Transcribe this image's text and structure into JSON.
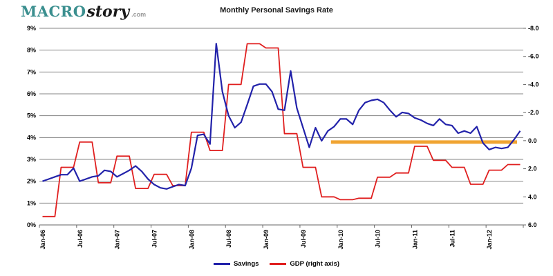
{
  "logo": {
    "brand_primary": "MACRO",
    "brand_secondary": "story",
    "brand_suffix": ".com"
  },
  "title": "Monthly Personal Savings Rate",
  "legend": [
    {
      "label": "Savings",
      "color": "#2222AA"
    },
    {
      "label": "GDP (right axis)",
      "color": "#E01F1F"
    }
  ],
  "colors": {
    "savings_line": "#2222AA",
    "gdp_line": "#E01F1F",
    "reference_bar": "#F0A432",
    "gridline": "#858585",
    "axis": "#666666",
    "label_text": "#000000",
    "logo_teal": "#3B8F8F",
    "logo_black": "#1a1a1a",
    "logo_gray": "#999999"
  },
  "chart_data": {
    "type": "line",
    "title": "Monthly Personal Savings Rate",
    "x_start": "Jan-06",
    "x_end": "Jun-12",
    "n_months": 78,
    "x_tick_labels": [
      "Jan-06",
      "Jul-06",
      "Jan-07",
      "Jul-07",
      "Jan-08",
      "Jul-08",
      "Jan-09",
      "Jul-09",
      "Jan-10",
      "Jul-10",
      "Jan-11",
      "Jul-11",
      "Jan-12"
    ],
    "x_tick_every_n_months": 6,
    "grid": true,
    "legend_position": "bottom",
    "left_axis": {
      "min": 0,
      "max": 9,
      "tick_labels": [
        "0%",
        "1%",
        "2%",
        "3%",
        "4%",
        "5%",
        "6%",
        "7%",
        "8%",
        "9%"
      ]
    },
    "right_axis": {
      "top": -8.0,
      "bottom": 6.0,
      "inverted": true,
      "tick_labels": [
        "-8.0",
        "-6.0",
        "-4.0",
        "-2.0",
        "0.0",
        "2.0",
        "4.0",
        "6.0"
      ]
    },
    "series": [
      {
        "name": "Savings",
        "axis": "left",
        "frequency": "monthly",
        "color": "#2222AA",
        "values": [
          2.0,
          2.1,
          2.2,
          2.3,
          2.3,
          2.6,
          2.0,
          2.1,
          2.2,
          2.25,
          2.5,
          2.45,
          2.2,
          2.35,
          2.5,
          2.7,
          2.45,
          2.1,
          1.85,
          1.7,
          1.65,
          1.75,
          1.85,
          1.8,
          2.6,
          4.1,
          4.15,
          3.7,
          8.3,
          6.1,
          5.0,
          4.45,
          4.7,
          5.5,
          6.35,
          6.45,
          6.45,
          6.1,
          5.3,
          5.25,
          7.05,
          5.35,
          4.45,
          3.55,
          4.45,
          3.85,
          4.3,
          4.5,
          4.85,
          4.85,
          4.6,
          5.25,
          5.6,
          5.7,
          5.75,
          5.6,
          5.25,
          4.95,
          5.15,
          5.1,
          4.9,
          4.8,
          4.65,
          4.55,
          4.85,
          4.6,
          4.55,
          4.2,
          4.3,
          4.2,
          4.5,
          3.75,
          3.45,
          3.55,
          3.5,
          3.55,
          3.9,
          4.3
        ]
      },
      {
        "name": "GDP (right axis)",
        "axis": "right",
        "frequency": "quarterly",
        "note": "each quarterly value repeated for its 3 months",
        "color": "#E01F1F",
        "quarters": [
          "2006Q1",
          "2006Q2",
          "2006Q3",
          "2006Q4",
          "2007Q1",
          "2007Q2",
          "2007Q3",
          "2007Q4",
          "2008Q1",
          "2008Q2",
          "2008Q3",
          "2008Q4",
          "2009Q1",
          "2009Q2",
          "2009Q3",
          "2009Q4",
          "2010Q1",
          "2010Q2",
          "2010Q3",
          "2010Q4",
          "2011Q1",
          "2011Q2",
          "2011Q3",
          "2011Q4",
          "2012Q1",
          "2012Q2"
        ],
        "values": [
          5.4,
          1.9,
          0.1,
          3.0,
          1.1,
          3.4,
          2.4,
          3.2,
          -0.6,
          0.7,
          -4.0,
          -6.9,
          -6.6,
          -0.5,
          1.9,
          4.0,
          4.2,
          4.1,
          2.6,
          2.3,
          0.4,
          1.4,
          1.9,
          3.1,
          2.1,
          1.7
        ]
      }
    ],
    "annotation": {
      "type": "horizontal-reference-bar",
      "axis": "right",
      "value": 0.1,
      "from_month_index": 47,
      "to_month_index": 77,
      "color": "#F0A432",
      "thickness": 5
    }
  }
}
